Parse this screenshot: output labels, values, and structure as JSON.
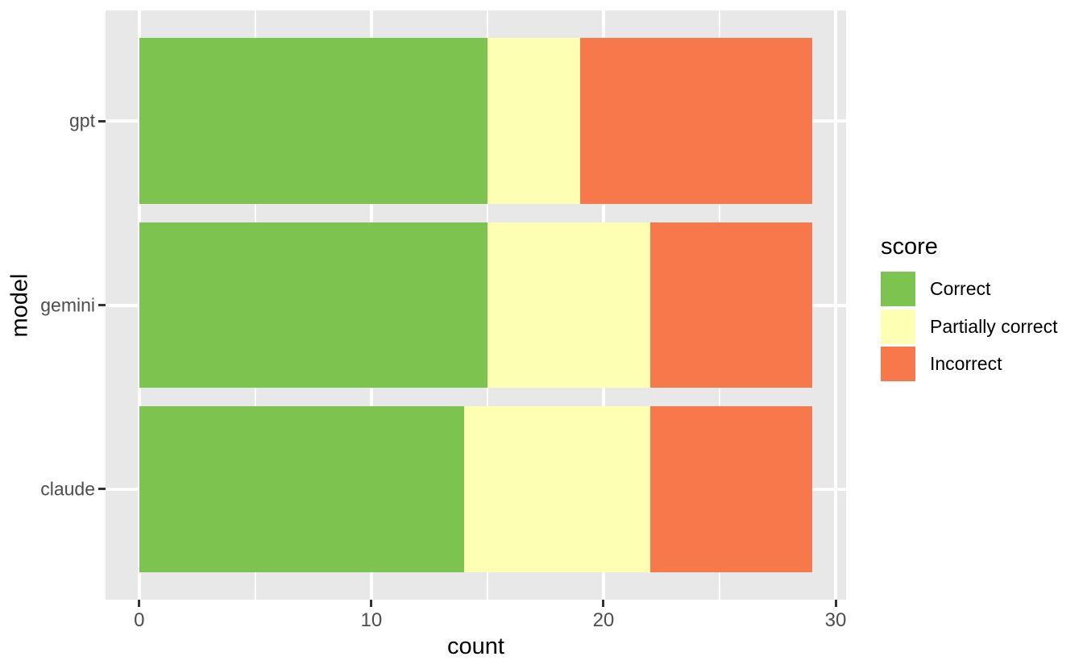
{
  "chart_data": {
    "type": "bar",
    "orientation": "horizontal",
    "stacked": true,
    "title": "",
    "xlabel": "count",
    "ylabel": "model",
    "categories": [
      "gpt",
      "gemini",
      "claude"
    ],
    "series": [
      {
        "name": "Correct",
        "color": "#7DC34F",
        "values": [
          15,
          15,
          14
        ]
      },
      {
        "name": "Partially correct",
        "color": "#FDFFB2",
        "values": [
          4,
          7,
          8
        ]
      },
      {
        "name": "Incorrect",
        "color": "#F7794B",
        "values": [
          10,
          7,
          7
        ]
      }
    ],
    "totals": [
      29,
      29,
      29
    ],
    "x_ticks": [
      0,
      10,
      20,
      30
    ],
    "x_minor_ticks": [
      5,
      15,
      25
    ],
    "xlim": [
      -1.45,
      30.45
    ],
    "legend_title": "score",
    "legend_position": "right",
    "grid": true,
    "colors": {
      "panel_background": "#E8E8E8",
      "grid": "#FFFFFF",
      "tick_mark": "#333333",
      "tick_label": "#4D4D4D",
      "axis_title": "#000000"
    }
  }
}
